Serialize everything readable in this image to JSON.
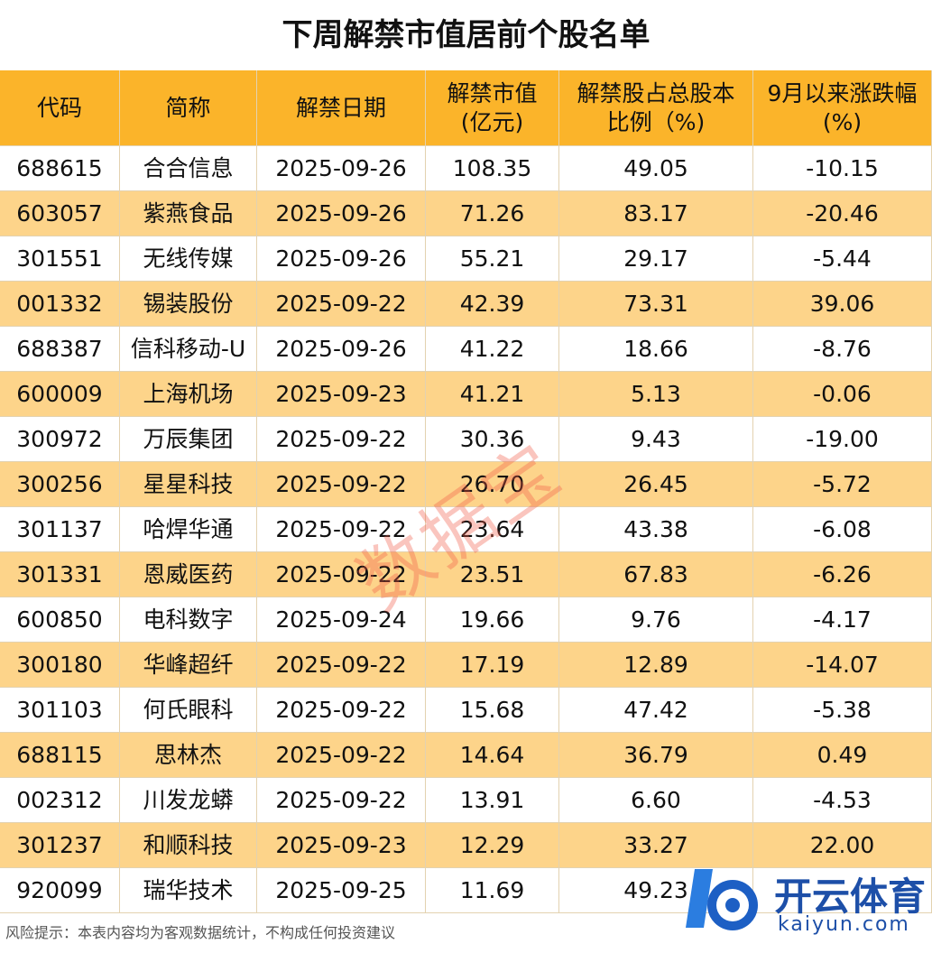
{
  "title": "下周解禁市值居前个股名单",
  "table": {
    "header": [
      "代码",
      "简称",
      "解禁日期",
      "解禁市值\n(亿元)",
      "解禁股占总股本\n比例（%)",
      "9月以来涨跌幅\n(%)"
    ],
    "rows": [
      [
        "688615",
        "合合信息",
        "2025-09-26",
        "108.35",
        "49.05",
        "-10.15"
      ],
      [
        "603057",
        "紫燕食品",
        "2025-09-26",
        "71.26",
        "83.17",
        "-20.46"
      ],
      [
        "301551",
        "无线传媒",
        "2025-09-26",
        "55.21",
        "29.17",
        "-5.44"
      ],
      [
        "001332",
        "锡装股份",
        "2025-09-22",
        "42.39",
        "73.31",
        "39.06"
      ],
      [
        "688387",
        "信科移动-U",
        "2025-09-26",
        "41.22",
        "18.66",
        "-8.76"
      ],
      [
        "600009",
        "上海机场",
        "2025-09-23",
        "41.21",
        "5.13",
        "-0.06"
      ],
      [
        "300972",
        "万辰集团",
        "2025-09-22",
        "30.36",
        "9.43",
        "-19.00"
      ],
      [
        "300256",
        "星星科技",
        "2025-09-22",
        "26.70",
        "26.45",
        "-5.72"
      ],
      [
        "301137",
        "哈焊华通",
        "2025-09-22",
        "23.64",
        "43.38",
        "-6.08"
      ],
      [
        "301331",
        "恩威医药",
        "2025-09-22",
        "23.51",
        "67.83",
        "-6.26"
      ],
      [
        "600850",
        "电科数字",
        "2025-09-24",
        "19.66",
        "9.76",
        "-4.17"
      ],
      [
        "300180",
        "华峰超纤",
        "2025-09-22",
        "17.19",
        "12.89",
        "-14.07"
      ],
      [
        "301103",
        "何氏眼科",
        "2025-09-22",
        "15.68",
        "47.42",
        "-5.38"
      ],
      [
        "688115",
        "思林杰",
        "2025-09-22",
        "14.64",
        "36.79",
        "0.49"
      ],
      [
        "002312",
        "川发龙蟒",
        "2025-09-22",
        "13.91",
        "6.60",
        "-4.53"
      ],
      [
        "301237",
        "和顺科技",
        "2025-09-23",
        "12.29",
        "33.27",
        "22.00"
      ],
      [
        "920099",
        "瑞华技术",
        "2025-09-25",
        "11.69",
        "49.23",
        null
      ]
    ]
  },
  "footer": "风险提示：本表内容均为客观数据统计，不构成任何投资建议",
  "watermark": "数据宝",
  "logo": {
    "name": "开云体育",
    "url": "kaiyun.com"
  }
}
